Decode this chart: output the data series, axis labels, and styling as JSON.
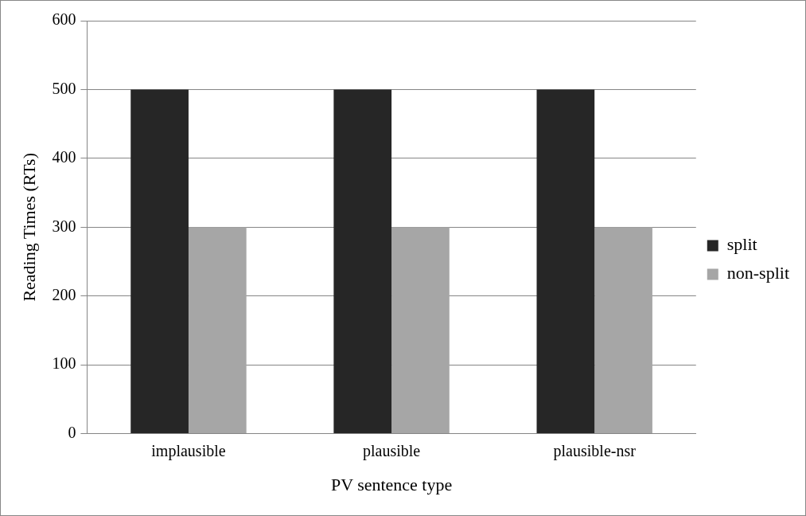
{
  "chart_data": {
    "type": "bar",
    "xlabel": "PV sentence type",
    "ylabel": "Reading Times (RTs)",
    "categories": [
      "implausible",
      "plausible",
      "plausible-nsr"
    ],
    "series": [
      {
        "name": "split",
        "color": "#262626",
        "values": [
          500,
          500,
          500
        ]
      },
      {
        "name": "non-split",
        "color": "#a6a6a6",
        "values": [
          300,
          300,
          300
        ]
      }
    ],
    "ylim": [
      0,
      600
    ],
    "yticks": [
      0,
      100,
      200,
      300,
      400,
      500,
      600
    ],
    "grid": "y",
    "legend": "right"
  }
}
